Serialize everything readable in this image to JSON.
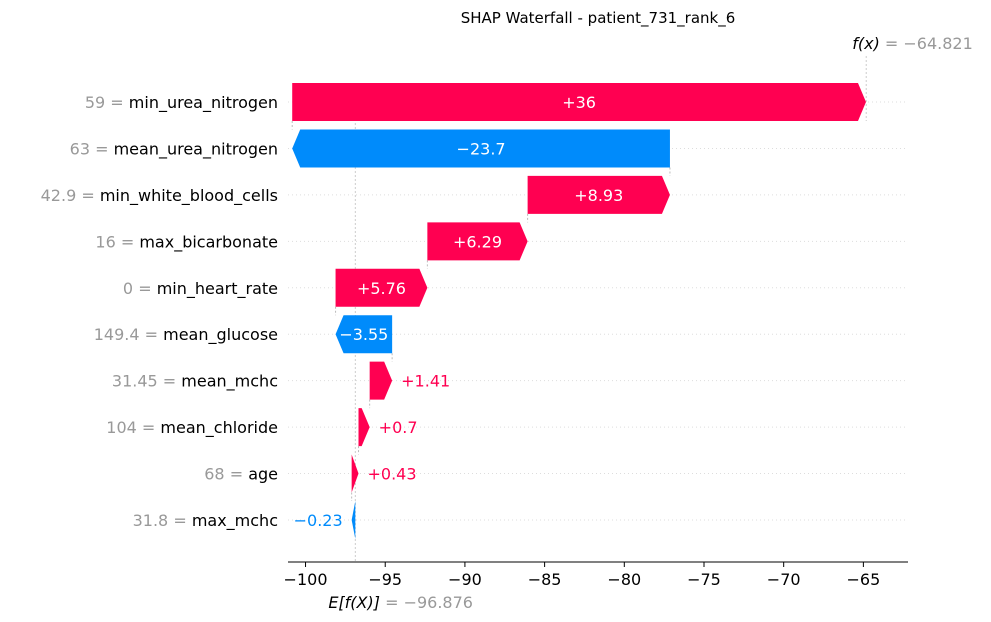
{
  "chart_data": {
    "type": "waterfall",
    "title": "SHAP Waterfall - patient_731_rank_6",
    "base_value": -96.876,
    "output_value": -64.821,
    "base_label": "E[f(X)]",
    "base_value_text": "= −96.876",
    "output_label": "f(x)",
    "output_value_text": "= −64.821",
    "features": [
      {
        "value": "59",
        "name": "min_urea_nitrogen",
        "shap": 36,
        "label": "+36"
      },
      {
        "value": "63",
        "name": "mean_urea_nitrogen",
        "shap": -23.7,
        "label": "−23.7"
      },
      {
        "value": "42.9",
        "name": "min_white_blood_cells",
        "shap": 8.93,
        "label": "+8.93"
      },
      {
        "value": "16",
        "name": "max_bicarbonate",
        "shap": 6.29,
        "label": "+6.29"
      },
      {
        "value": "0",
        "name": "min_heart_rate",
        "shap": 5.76,
        "label": "+5.76"
      },
      {
        "value": "149.4",
        "name": "mean_glucose",
        "shap": -3.55,
        "label": "−3.55"
      },
      {
        "value": "31.45",
        "name": "mean_mchc",
        "shap": 1.41,
        "label": "+1.41"
      },
      {
        "value": "104",
        "name": "mean_chloride",
        "shap": 0.7,
        "label": "+0.7"
      },
      {
        "value": "68",
        "name": "age",
        "shap": 0.43,
        "label": "+0.43"
      },
      {
        "value": "31.8",
        "name": "max_mchc",
        "shap": -0.23,
        "label": "−0.23"
      }
    ],
    "x_ticks": [
      -100,
      -95,
      -90,
      -85,
      -80,
      -75,
      -70,
      -65
    ],
    "x_tick_labels": [
      "−100",
      "−95",
      "−90",
      "−85",
      "−80",
      "−75",
      "−70",
      "−65"
    ],
    "xlim": [
      -101.1,
      -62.2
    ],
    "colors": {
      "positive": "#ff0051",
      "negative": "#008bfb",
      "muted": "#999999"
    }
  }
}
